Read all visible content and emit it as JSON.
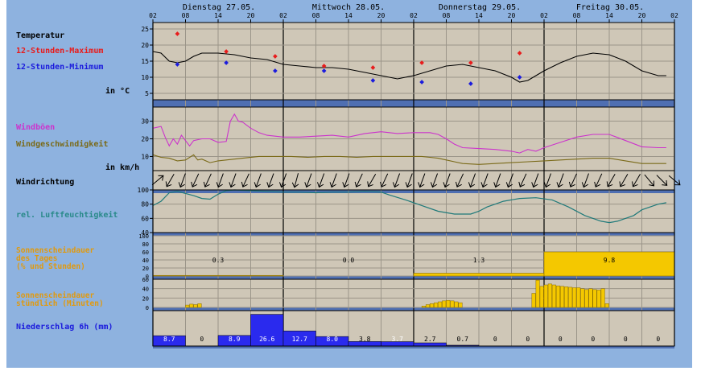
{
  "colors": {
    "page_bg": "#ffffff",
    "plot_bg": "#cfc7b7",
    "grid": "#9b9589",
    "frame": "#000000",
    "sep_band": "#4f6fb2",
    "outer_blue": "#8eb2df",
    "temp_line": "#000000",
    "temp_max": "#e81c1c",
    "temp_min": "#1b1bdd",
    "gust": "#cc33cc",
    "wind": "#7a6a18",
    "humidity": "#1f7a7a",
    "sun": "#f4c800",
    "sun_outline": "#8a6d00",
    "rain_fill": "#2a2aee",
    "orange_label": "#e09a10",
    "teal_label": "#2a8a8a"
  },
  "header": {
    "days": [
      "Dienstag 27.05.",
      "Mittwoch 28.05.",
      "Donnerstag 29.05.",
      "Freitag 30.05."
    ],
    "hours": [
      "02",
      "08",
      "14",
      "20",
      "02",
      "08",
      "14",
      "20",
      "02",
      "08",
      "14",
      "20",
      "02",
      "08",
      "14",
      "20",
      "02"
    ]
  },
  "labels": {
    "temp_title": "Temperatur",
    "temp_max": "12-Stunden-Maximum",
    "temp_min": "12-Stunden-Minimum",
    "temp_unit": "in °C",
    "gust": "Windböen",
    "wind": "Windgeschwindigkeit",
    "wind_unit": "in km/h",
    "wind_dir": "Windrichtung",
    "humidity": "rel. Luftfeuchtigkeit",
    "sun_day_1": "Sonnenscheindauer",
    "sun_day_2": "des Tages",
    "sun_day_3": "(% und Stunden)",
    "sun_hour_1": "Sonnenscheindauer",
    "sun_hour_2": "stündlich (Minuten)",
    "rain": "Niederschlag 6h (mm)"
  },
  "chart_data": {
    "type": "line",
    "x_unit": "hours from Tue 27.05. 02:00",
    "temperature": {
      "ylim": [
        3,
        27
      ],
      "yticks": [
        5,
        10,
        15,
        20,
        25
      ],
      "line": [
        [
          0,
          18
        ],
        [
          2,
          17.5
        ],
        [
          4,
          15
        ],
        [
          6,
          14.5
        ],
        [
          8,
          15
        ],
        [
          10,
          16.5
        ],
        [
          12,
          17.5
        ],
        [
          16,
          17.5
        ],
        [
          20,
          17
        ],
        [
          24,
          16
        ],
        [
          28,
          15.5
        ],
        [
          32,
          14
        ],
        [
          36,
          13.5
        ],
        [
          40,
          13
        ],
        [
          44,
          13
        ],
        [
          48,
          12.5
        ],
        [
          52,
          11.5
        ],
        [
          56,
          10.5
        ],
        [
          60,
          9.5
        ],
        [
          64,
          10.5
        ],
        [
          68,
          12
        ],
        [
          72,
          13.5
        ],
        [
          76,
          14
        ],
        [
          80,
          13
        ],
        [
          84,
          12
        ],
        [
          88,
          10
        ],
        [
          90,
          8.5
        ],
        [
          92,
          9
        ],
        [
          94,
          10.5
        ],
        [
          96,
          12
        ],
        [
          100,
          14.5
        ],
        [
          104,
          16.5
        ],
        [
          108,
          17.5
        ],
        [
          112,
          17
        ],
        [
          116,
          15
        ],
        [
          120,
          12
        ],
        [
          124,
          10.5
        ],
        [
          126,
          10.5
        ]
      ],
      "max": [
        [
          6,
          23.5
        ],
        [
          18,
          18
        ],
        [
          30,
          16.5
        ],
        [
          42,
          13.5
        ],
        [
          54,
          13
        ],
        [
          66,
          14.5
        ],
        [
          78,
          14.5
        ],
        [
          90,
          17.5
        ]
      ],
      "min": [
        [
          6,
          14
        ],
        [
          18,
          14.5
        ],
        [
          30,
          12
        ],
        [
          42,
          12
        ],
        [
          54,
          9
        ],
        [
          66,
          8.5
        ],
        [
          78,
          8
        ],
        [
          90,
          10
        ]
      ]
    },
    "wind": {
      "ylim": [
        2,
        38
      ],
      "yticks": [
        10,
        20,
        30
      ],
      "gust": [
        [
          0,
          26
        ],
        [
          2,
          27
        ],
        [
          3,
          21
        ],
        [
          4,
          16
        ],
        [
          5,
          20
        ],
        [
          6,
          17
        ],
        [
          7,
          22
        ],
        [
          9,
          16
        ],
        [
          10,
          19
        ],
        [
          12,
          20
        ],
        [
          14,
          20
        ],
        [
          16,
          18
        ],
        [
          18,
          18.5
        ],
        [
          19,
          30
        ],
        [
          20,
          34
        ],
        [
          21,
          30
        ],
        [
          22,
          29.5
        ],
        [
          24,
          26
        ],
        [
          26,
          23.5
        ],
        [
          28,
          22
        ],
        [
          32,
          21
        ],
        [
          36,
          21
        ],
        [
          40,
          21.5
        ],
        [
          44,
          22
        ],
        [
          48,
          21
        ],
        [
          52,
          23
        ],
        [
          56,
          24
        ],
        [
          60,
          23
        ],
        [
          64,
          23.5
        ],
        [
          68,
          23.5
        ],
        [
          70,
          22.5
        ],
        [
          72,
          20
        ],
        [
          74,
          17
        ],
        [
          76,
          15
        ],
        [
          80,
          14.5
        ],
        [
          84,
          14
        ],
        [
          88,
          13
        ],
        [
          90,
          12
        ],
        [
          92,
          14
        ],
        [
          94,
          13
        ],
        [
          96,
          15
        ],
        [
          100,
          18
        ],
        [
          104,
          21
        ],
        [
          108,
          22.5
        ],
        [
          112,
          22.5
        ],
        [
          116,
          19
        ],
        [
          120,
          15.5
        ],
        [
          124,
          15
        ],
        [
          126,
          15
        ]
      ],
      "speed": [
        [
          0,
          11
        ],
        [
          2,
          9.5
        ],
        [
          4,
          9
        ],
        [
          6,
          7.5
        ],
        [
          8,
          8
        ],
        [
          10,
          11
        ],
        [
          11,
          8
        ],
        [
          12,
          8.5
        ],
        [
          14,
          6.5
        ],
        [
          16,
          7.5
        ],
        [
          18,
          8
        ],
        [
          22,
          9
        ],
        [
          26,
          10
        ],
        [
          30,
          10
        ],
        [
          34,
          10
        ],
        [
          38,
          9.5
        ],
        [
          42,
          10
        ],
        [
          46,
          10
        ],
        [
          50,
          9.5
        ],
        [
          54,
          10
        ],
        [
          58,
          10
        ],
        [
          62,
          10
        ],
        [
          66,
          10
        ],
        [
          68,
          9.5
        ],
        [
          70,
          9
        ],
        [
          72,
          8
        ],
        [
          74,
          7
        ],
        [
          76,
          6
        ],
        [
          80,
          5.5
        ],
        [
          84,
          6
        ],
        [
          88,
          6.5
        ],
        [
          92,
          7
        ],
        [
          96,
          7.5
        ],
        [
          100,
          8
        ],
        [
          104,
          8.5
        ],
        [
          108,
          9
        ],
        [
          112,
          9
        ],
        [
          116,
          7.5
        ],
        [
          120,
          6
        ],
        [
          124,
          6
        ],
        [
          126,
          6
        ]
      ]
    },
    "wind_direction_deg": [
      230,
      30,
      20,
      25,
      25,
      20,
      20,
      25,
      20,
      20,
      20,
      15,
      20,
      20,
      20,
      20,
      25,
      30,
      25,
      20,
      20,
      20,
      20,
      20,
      25,
      20,
      20,
      20,
      20,
      25,
      20,
      20,
      20,
      25,
      20,
      25,
      30,
      30,
      30,
      320,
      315,
      310
    ],
    "humidity": {
      "ylim": [
        40,
        100
      ],
      "yticks": [
        40,
        60,
        80,
        100
      ],
      "line": [
        [
          0,
          78
        ],
        [
          2,
          84
        ],
        [
          4,
          96
        ],
        [
          6,
          98
        ],
        [
          8,
          95
        ],
        [
          10,
          92
        ],
        [
          12,
          88
        ],
        [
          14,
          87
        ],
        [
          16,
          94
        ],
        [
          18,
          99
        ],
        [
          20,
          100
        ],
        [
          24,
          99
        ],
        [
          28,
          98
        ],
        [
          32,
          97
        ],
        [
          36,
          97
        ],
        [
          40,
          96
        ],
        [
          44,
          97
        ],
        [
          48,
          97
        ],
        [
          52,
          98
        ],
        [
          56,
          97
        ],
        [
          58,
          93
        ],
        [
          62,
          86
        ],
        [
          66,
          78
        ],
        [
          70,
          70
        ],
        [
          74,
          66
        ],
        [
          78,
          66
        ],
        [
          80,
          70
        ],
        [
          82,
          76
        ],
        [
          86,
          84
        ],
        [
          90,
          88
        ],
        [
          94,
          89
        ],
        [
          98,
          86
        ],
        [
          102,
          76
        ],
        [
          106,
          64
        ],
        [
          110,
          56
        ],
        [
          112,
          54
        ],
        [
          114,
          56
        ],
        [
          118,
          64
        ],
        [
          120,
          72
        ],
        [
          124,
          80
        ],
        [
          126,
          82
        ]
      ]
    },
    "sun_daily": {
      "ylim": [
        0,
        100
      ],
      "yticks": [
        0,
        20,
        40,
        60,
        80,
        100
      ],
      "days": [
        {
          "percent": 1.5,
          "hours": "0.3"
        },
        {
          "percent": 0,
          "hours": "0.0"
        },
        {
          "percent": 7,
          "hours": "1.3"
        },
        {
          "percent": 60,
          "hours": "9.8"
        }
      ]
    },
    "sun_hourly": {
      "ylim": [
        0,
        60
      ],
      "yticks": [
        0,
        20,
        40,
        60
      ],
      "first_bar_hour": 9,
      "minutes": [
        5,
        7,
        6,
        8,
        0,
        0,
        0,
        0,
        0,
        0,
        0,
        0,
        0,
        0,
        0,
        0,
        0,
        0,
        0,
        0,
        0,
        0,
        0,
        0,
        0,
        0,
        0,
        0,
        0,
        0,
        0,
        0,
        0,
        0,
        0,
        0,
        0,
        0,
        0,
        0,
        0,
        0,
        0,
        0,
        0,
        0,
        0,
        0,
        0,
        0,
        0,
        0,
        0,
        0,
        0,
        0,
        0,
        0,
        0,
        0,
        0,
        0,
        0,
        0,
        0,
        0,
        0,
        0,
        0,
        0,
        0,
        0,
        0,
        0,
        0,
        0,
        0,
        0,
        0,
        0,
        0,
        0,
        0,
        0,
        0,
        0,
        0,
        0,
        0,
        0,
        0,
        0,
        0,
        0,
        0,
        0,
        0,
        0,
        0,
        0,
        0,
        0,
        0,
        0,
        0,
        0,
        0,
        0,
        0,
        0,
        0
      ],
      "bars": [
        [
          8,
          5
        ],
        [
          9,
          7
        ],
        [
          10,
          6
        ],
        [
          11,
          8
        ],
        [
          66,
          3
        ],
        [
          67,
          6
        ],
        [
          68,
          8
        ],
        [
          69,
          10
        ],
        [
          70,
          12
        ],
        [
          71,
          14
        ],
        [
          72,
          15
        ],
        [
          73,
          14
        ],
        [
          74,
          12
        ],
        [
          75,
          10
        ],
        [
          93,
          30
        ],
        [
          94,
          58
        ],
        [
          95,
          45
        ],
        [
          96,
          48
        ],
        [
          97,
          50
        ],
        [
          98,
          48
        ],
        [
          99,
          46
        ],
        [
          100,
          45
        ],
        [
          101,
          44
        ],
        [
          102,
          43
        ],
        [
          103,
          42
        ],
        [
          104,
          42
        ],
        [
          105,
          40
        ],
        [
          106,
          38
        ],
        [
          107,
          40
        ],
        [
          108,
          38
        ],
        [
          109,
          37
        ],
        [
          110,
          40
        ],
        [
          111,
          8
        ]
      ]
    },
    "precip_6h": {
      "values": [
        "8.7",
        "0",
        "8.9",
        "26.6",
        "12.7",
        "8.0",
        "3.8",
        "3.7",
        "2.7",
        "0.7",
        "0",
        "0",
        "0",
        "0",
        "0",
        "0"
      ],
      "bar_mm": [
        8.7,
        0,
        8.9,
        26.6,
        12.7,
        8.0,
        3.8,
        3.7,
        2.7,
        0.7,
        0,
        0,
        0,
        0,
        0,
        0
      ]
    }
  }
}
